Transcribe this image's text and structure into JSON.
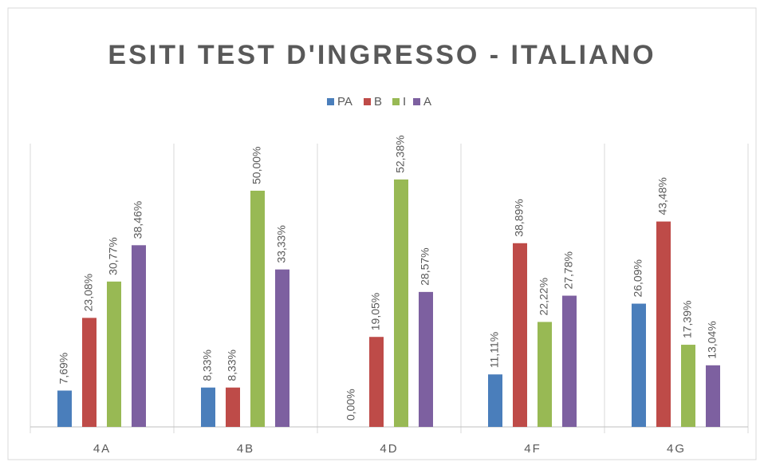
{
  "chart_data": {
    "type": "bar",
    "title": "ESITI TEST D'INGRESSO - ITALIANO",
    "categories": [
      "4A",
      "4B",
      "4D",
      "4F",
      "4G"
    ],
    "series": [
      {
        "name": "PA",
        "color": "#4a7ebb",
        "values": [
          7.69,
          8.33,
          0,
          11.11,
          26.09
        ],
        "value_labels": [
          "7,69%",
          "8,33%",
          "0,00%",
          "11,11%",
          "26,09%"
        ]
      },
      {
        "name": "B",
        "color": "#be4b48",
        "values": [
          23.08,
          8.33,
          19.05,
          38.89,
          43.48
        ],
        "value_labels": [
          "23,08%",
          "8,33%",
          "19,05%",
          "38,89%",
          "43,48%"
        ]
      },
      {
        "name": "I",
        "color": "#98b954",
        "values": [
          30.77,
          50.0,
          52.38,
          22.22,
          17.39
        ],
        "value_labels": [
          "30,77%",
          "50,00%",
          "52,38%",
          "22,22%",
          "17,39%"
        ]
      },
      {
        "name": "A",
        "color": "#7d60a0",
        "values": [
          38.46,
          33.33,
          28.57,
          27.78,
          13.04
        ],
        "value_labels": [
          "38,46%",
          "33,33%",
          "28,57%",
          "27,78%",
          "13,04%"
        ]
      }
    ],
    "legend": "top"
  }
}
